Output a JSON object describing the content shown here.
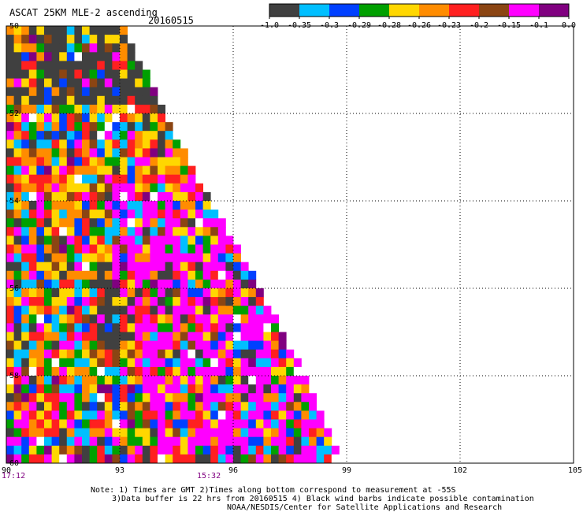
{
  "header": {
    "title": "ASCAT 25KM MLE-2 ascending",
    "date": "20160515"
  },
  "colorbar": {
    "colors": [
      "#404040",
      "#00bfff",
      "#0040ff",
      "#00a000",
      "#ffd700",
      "#ff8c00",
      "#ff2020",
      "#8b4513",
      "#ff00ff",
      "#800080"
    ],
    "labels": [
      "-1.0",
      "-0.35",
      "-0.3",
      "-0.29",
      "-0.28",
      "-0.26",
      "-0.23",
      "-0.2",
      "-0.15",
      "-0.1",
      "0.0"
    ]
  },
  "times": {
    "left": "17:12",
    "middle": "15:32"
  },
  "notes": [
    "Note: 1) Times are GMT 2)Times along bottom correspond to measurement at -55S",
    "3)Data buffer is 22 hrs from 20160515 4) Black wind barbs indicate possible contamination",
    "NOAA/NESDIS/Center for Satellite Applications and Research"
  ],
  "chart_data": {
    "type": "heatmap",
    "title": "ASCAT 25KM MLE-2 ascending",
    "xlim": [
      90,
      105
    ],
    "ylim": [
      -60,
      -50
    ],
    "xticks": [
      "90",
      "93",
      "96",
      "99",
      "102",
      "105"
    ],
    "yticks": [
      "-50",
      "-52",
      "-54",
      "-56",
      "-58",
      "-60"
    ],
    "grid": true,
    "swath_east_edge": [
      {
        "lat": -50,
        "lon": 93.0
      },
      {
        "lat": -52,
        "lon": 94.1
      },
      {
        "lat": -54,
        "lon": 95.3
      },
      {
        "lat": -56,
        "lon": 96.6
      },
      {
        "lat": -58,
        "lon": 97.8
      },
      {
        "lat": -60,
        "lon": 98.8
      }
    ],
    "cell_size_deg": 0.2,
    "values_note": "cell values range from -1.0 to 0.0 per colorbar"
  }
}
